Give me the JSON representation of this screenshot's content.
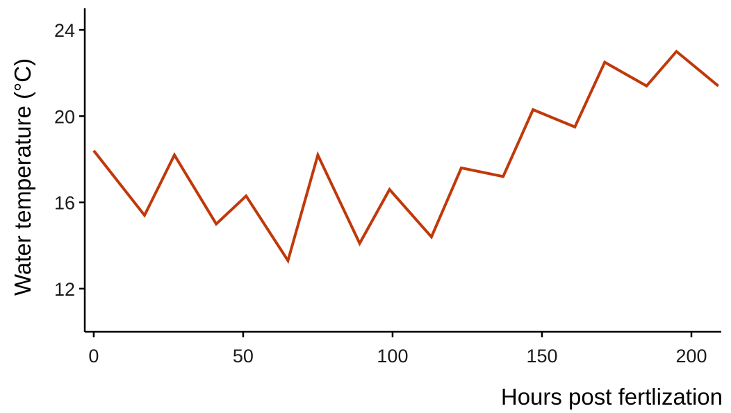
{
  "chart_data": {
    "type": "line",
    "title": "",
    "xlabel": "Hours post fertlization",
    "ylabel": "Water temperature (°C)",
    "xlim": [
      -3,
      210
    ],
    "ylim": [
      10,
      25
    ],
    "x_ticks": [
      0,
      50,
      100,
      150,
      200
    ],
    "y_ticks": [
      12,
      16,
      20,
      24
    ],
    "grid": false,
    "legend": "none",
    "series": [
      {
        "color": "#c0390b",
        "x": [
          0,
          17,
          27,
          41,
          51,
          65,
          75,
          89,
          99,
          113,
          123,
          137,
          147,
          161,
          171,
          185,
          195,
          209
        ],
        "y": [
          18.4,
          15.4,
          18.2,
          15.0,
          16.3,
          13.3,
          18.2,
          14.1,
          16.6,
          14.4,
          17.6,
          17.2,
          20.3,
          19.5,
          22.5,
          21.4,
          23.0,
          21.4
        ]
      }
    ]
  }
}
